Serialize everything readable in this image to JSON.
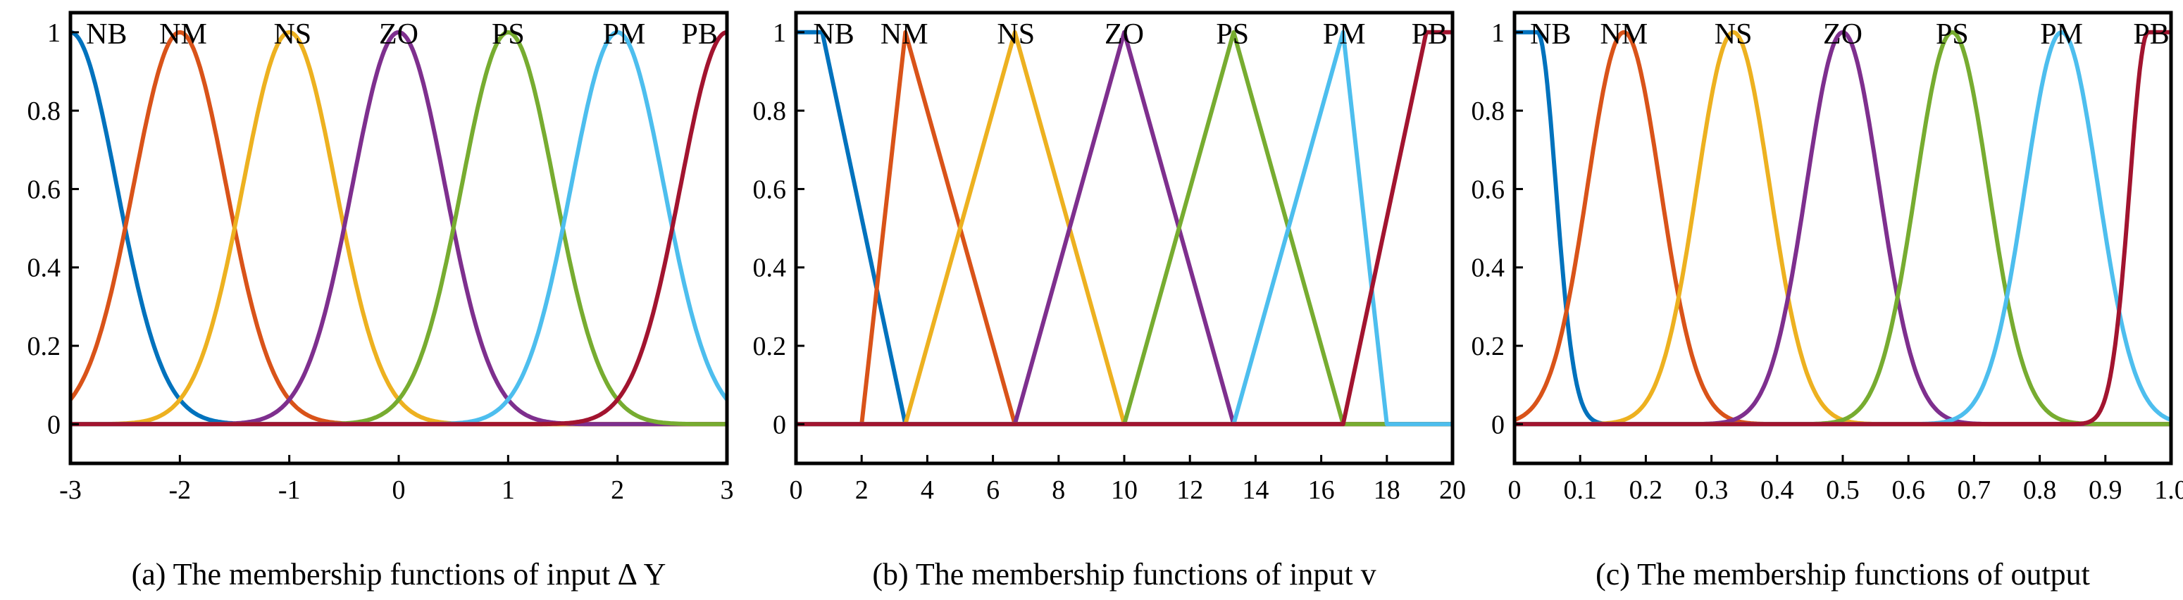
{
  "colors": {
    "NB": "#0072BD",
    "NM": "#D95319",
    "NS": "#EDB120",
    "ZO": "#7E2F8E",
    "PS": "#77AC30",
    "PM": "#4DBEEE",
    "PB": "#A2142F",
    "axis": "#000000"
  },
  "chart_data": [
    {
      "type": "line",
      "title": "",
      "caption": "(a) The membership functions of input  ∆ Y",
      "xlabel": "",
      "ylabel": "",
      "xlim": [
        -3,
        3
      ],
      "ylim": [
        -0.1,
        1.05
      ],
      "xticks": [
        -3,
        -2,
        -1,
        0,
        1,
        2,
        3
      ],
      "xtick_labels": [
        "-3",
        "-2",
        "-1",
        "0",
        "1",
        "2",
        "3"
      ],
      "yticks": [
        0,
        0.2,
        0.4,
        0.6,
        0.8,
        1
      ],
      "ytick_labels": [
        "0",
        "0.2",
        "0.4",
        "0.6",
        "0.8",
        "1"
      ],
      "grid": false,
      "series": [
        {
          "name": "NB",
          "shape": "gaussian",
          "params": {
            "center": -3,
            "sigma": 0.425
          },
          "label_x": -2.67
        },
        {
          "name": "NM",
          "shape": "gaussian",
          "params": {
            "center": -2,
            "sigma": 0.425
          },
          "label_x": -1.97
        },
        {
          "name": "NS",
          "shape": "gaussian",
          "params": {
            "center": -1,
            "sigma": 0.425
          },
          "label_x": -0.97
        },
        {
          "name": "ZO",
          "shape": "gaussian",
          "params": {
            "center": 0,
            "sigma": 0.425
          },
          "label_x": 0.0
        },
        {
          "name": "PS",
          "shape": "gaussian",
          "params": {
            "center": 1,
            "sigma": 0.425
          },
          "label_x": 1.0
        },
        {
          "name": "PM",
          "shape": "gaussian",
          "params": {
            "center": 2,
            "sigma": 0.425
          },
          "label_x": 2.06
        },
        {
          "name": "PB",
          "shape": "gaussian",
          "params": {
            "center": 3,
            "sigma": 0.425
          },
          "label_x": 2.75
        }
      ]
    },
    {
      "type": "line",
      "title": "",
      "caption": "(b) The membership functions of input v",
      "xlabel": "",
      "ylabel": "",
      "xlim": [
        0,
        20
      ],
      "ylim": [
        -0.1,
        1.05
      ],
      "xticks": [
        0,
        2,
        4,
        6,
        8,
        10,
        12,
        14,
        16,
        18,
        20
      ],
      "xtick_labels": [
        "0",
        "2",
        "4",
        "6",
        "8",
        "10",
        "12",
        "14",
        "16",
        "18",
        "20"
      ],
      "yticks": [
        0,
        0.2,
        0.4,
        0.6,
        0.8,
        1
      ],
      "ytick_labels": [
        "0",
        "0.2",
        "0.4",
        "0.6",
        "0.8",
        "1"
      ],
      "grid": false,
      "series": [
        {
          "name": "NB",
          "shape": "polyline",
          "x": [
            0,
            0.8,
            3.333,
            20
          ],
          "y": [
            1,
            1,
            0,
            0
          ],
          "label_x": 1.15
        },
        {
          "name": "NM",
          "shape": "polyline",
          "x": [
            0,
            2.0,
            3.333,
            6.667,
            20
          ],
          "y": [
            0,
            0,
            1,
            0,
            0
          ],
          "label_x": 3.3
        },
        {
          "name": "NS",
          "shape": "polyline",
          "x": [
            0,
            3.333,
            6.667,
            10,
            20
          ],
          "y": [
            0,
            0,
            1,
            0,
            0
          ],
          "label_x": 6.7
        },
        {
          "name": "ZO",
          "shape": "polyline",
          "x": [
            0,
            6.667,
            10,
            13.333,
            20
          ],
          "y": [
            0,
            0,
            1,
            0,
            0
          ],
          "label_x": 10.0
        },
        {
          "name": "PS",
          "shape": "polyline",
          "x": [
            0,
            10,
            13.333,
            16.667,
            20
          ],
          "y": [
            0,
            0,
            1,
            0,
            0
          ],
          "label_x": 13.3
        },
        {
          "name": "PM",
          "shape": "polyline",
          "x": [
            0,
            13.333,
            16.667,
            18.0,
            20
          ],
          "y": [
            0,
            0,
            1,
            0,
            0
          ],
          "label_x": 16.7
        },
        {
          "name": "PB",
          "shape": "polyline",
          "x": [
            0,
            16.667,
            19.2,
            20
          ],
          "y": [
            0,
            0,
            1,
            1
          ],
          "label_x": 19.3
        }
      ]
    },
    {
      "type": "line",
      "title": "",
      "caption": "(c) The membership functions of output",
      "xlabel": "",
      "ylabel": "",
      "xlim": [
        0,
        1
      ],
      "ylim": [
        -0.1,
        1.05
      ],
      "xticks": [
        0,
        0.1,
        0.2,
        0.3,
        0.4,
        0.5,
        0.6,
        0.7,
        0.8,
        0.9,
        1.0
      ],
      "xtick_labels": [
        "0",
        "0.1",
        "0.2",
        "0.3",
        "0.4",
        "0.5",
        "0.6",
        "0.7",
        "0.8",
        "0.9",
        "1.0"
      ],
      "yticks": [
        0,
        0.2,
        0.4,
        0.6,
        0.8,
        1
      ],
      "ytick_labels": [
        "0",
        "0.2",
        "0.4",
        "0.6",
        "0.8",
        "1"
      ],
      "grid": false,
      "series": [
        {
          "name": "NB",
          "shape": "gaussian",
          "params": {
            "center": 0.035,
            "sigma": 0.028,
            "flat": true,
            "side": "right"
          },
          "label_x": 0.055
        },
        {
          "name": "NM",
          "shape": "gaussian",
          "params": {
            "center": 0.1667,
            "sigma": 0.0555
          },
          "label_x": 0.1667
        },
        {
          "name": "NS",
          "shape": "gaussian",
          "params": {
            "center": 0.3333,
            "sigma": 0.0555
          },
          "label_x": 0.3333
        },
        {
          "name": "ZO",
          "shape": "gaussian",
          "params": {
            "center": 0.5,
            "sigma": 0.0555
          },
          "label_x": 0.5
        },
        {
          "name": "PS",
          "shape": "gaussian",
          "params": {
            "center": 0.6667,
            "sigma": 0.0555
          },
          "label_x": 0.6667
        },
        {
          "name": "PM",
          "shape": "gaussian",
          "params": {
            "center": 0.8333,
            "sigma": 0.0555
          },
          "label_x": 0.8333
        },
        {
          "name": "PB",
          "shape": "gaussian",
          "params": {
            "center": 0.965,
            "sigma": 0.028,
            "flat": true,
            "side": "left"
          },
          "label_x": 0.97
        }
      ]
    }
  ]
}
